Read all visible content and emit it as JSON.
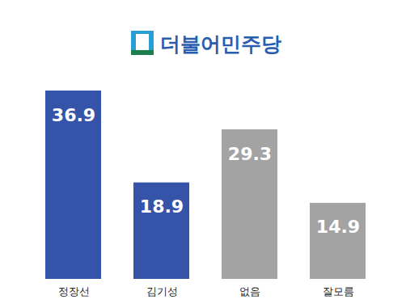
{
  "chart_data": {
    "type": "bar",
    "title": "더불어민주당",
    "categories": [
      "정장선",
      "김기성",
      "없음",
      "잘모름"
    ],
    "values": [
      36.9,
      18.9,
      29.3,
      14.9
    ],
    "colors": [
      "#3553a8",
      "#3553a8",
      "#a3a3a3",
      "#a3a3a3"
    ],
    "data_labels": true,
    "tick_labels": "x"
  }
}
